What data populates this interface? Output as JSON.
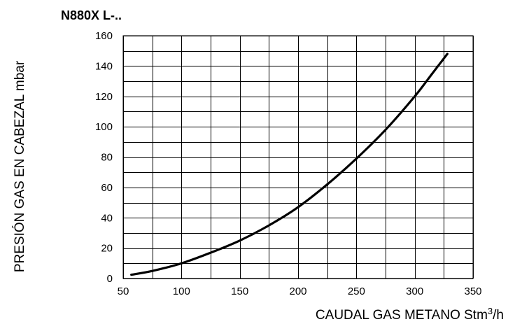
{
  "chart_data": {
    "type": "line",
    "title": "N880X L-..",
    "xlabel_main": "CAUDAL GAS METANO Stm",
    "xlabel_sup": "3",
    "xlabel_end": "/h",
    "ylabel": "PRESIÓN GAS EN CABEZAL mbar",
    "xlim": [
      50,
      350
    ],
    "ylim": [
      0,
      160
    ],
    "x_ticks": [
      50,
      100,
      150,
      200,
      250,
      300,
      350
    ],
    "y_ticks": [
      0,
      20,
      40,
      60,
      80,
      100,
      120,
      140,
      160
    ],
    "grid": true,
    "series": [
      {
        "x": [
          57,
          75,
          100,
          125,
          150,
          175,
          200,
          225,
          250,
          275,
          300,
          315,
          328
        ],
        "y": [
          2.5,
          5,
          10,
          17,
          25,
          35,
          47,
          62,
          79,
          98,
          120,
          135,
          148
        ]
      }
    ]
  }
}
